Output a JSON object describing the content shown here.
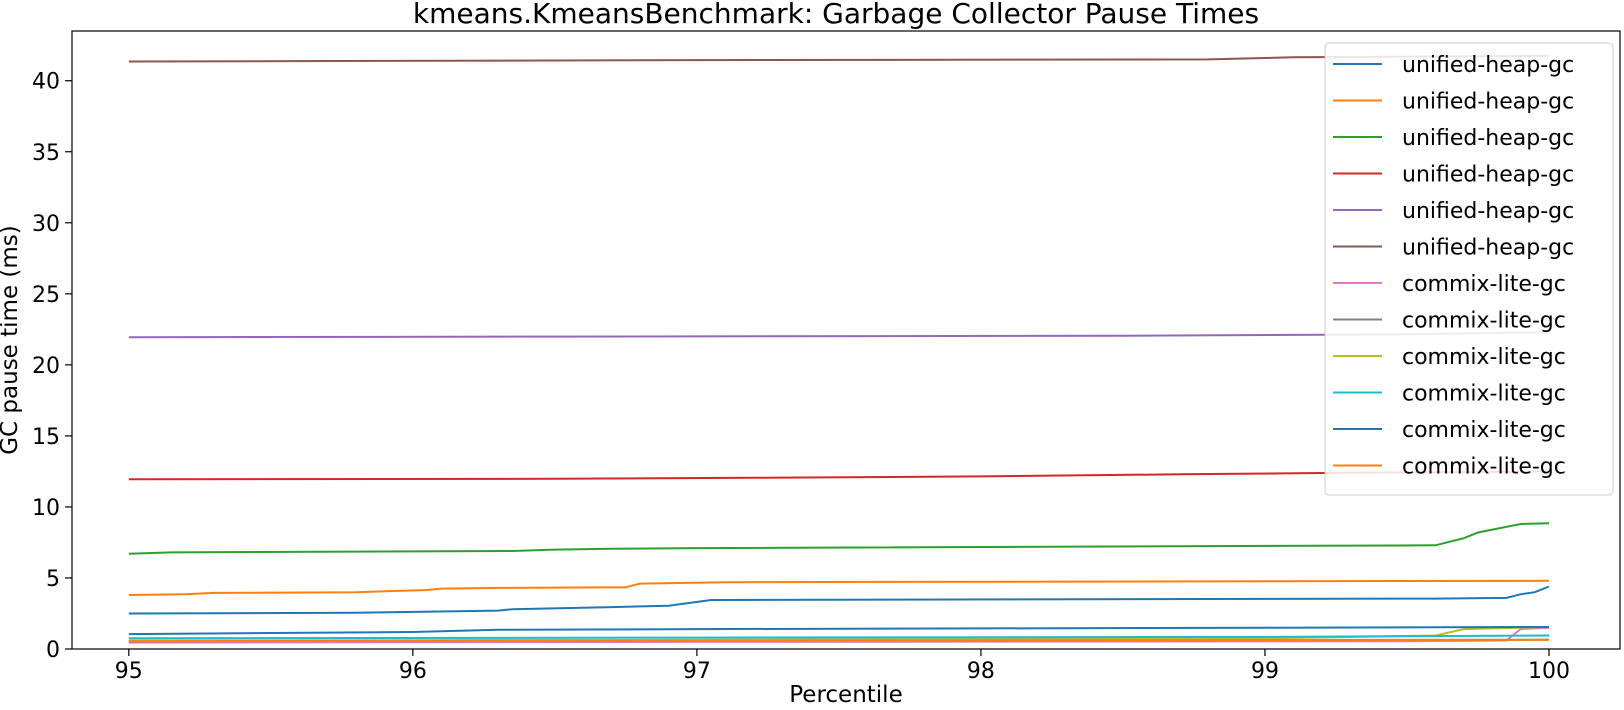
{
  "chart_data": {
    "type": "line",
    "title": "kmeans.KmeansBenchmark: Garbage Collector Pause Times",
    "xlabel": "Percentile",
    "ylabel": "GC pause time (ms)",
    "xlim": [
      94.8,
      100.25
    ],
    "ylim": [
      0,
      43.5
    ],
    "xticks": [
      95,
      96,
      97,
      98,
      99,
      100
    ],
    "yticks": [
      0,
      5,
      10,
      15,
      20,
      25,
      30,
      35,
      40
    ],
    "grid": false,
    "legend_position": "top-right",
    "series": [
      {
        "name": "unified-heap-gc",
        "color": "#1f77b4",
        "x": [
          95,
          95.8,
          96.3,
          96.35,
          96.7,
          96.9,
          97.05,
          99.6,
          99.85,
          99.9,
          99.95,
          100
        ],
        "y": [
          2.5,
          2.55,
          2.7,
          2.8,
          2.95,
          3.05,
          3.45,
          3.55,
          3.6,
          3.85,
          4.0,
          4.4
        ]
      },
      {
        "name": "unified-heap-gc",
        "color": "#ff7f0e",
        "x": [
          95,
          95.2,
          95.3,
          95.8,
          96.05,
          96.1,
          96.3,
          96.75,
          96.8,
          97.1,
          100
        ],
        "y": [
          3.8,
          3.85,
          3.95,
          4.0,
          4.15,
          4.25,
          4.3,
          4.35,
          4.6,
          4.7,
          4.8
        ]
      },
      {
        "name": "unified-heap-gc",
        "color": "#2ca02c",
        "x": [
          95,
          95.15,
          96.35,
          96.5,
          96.7,
          97.0,
          99.6,
          99.7,
          99.75,
          99.9,
          100
        ],
        "y": [
          6.7,
          6.8,
          6.9,
          7.0,
          7.05,
          7.1,
          7.3,
          7.8,
          8.2,
          8.8,
          8.85
        ]
      },
      {
        "name": "unified-heap-gc",
        "color": "#d62728",
        "x": [
          95,
          96.5,
          97.2,
          98.0,
          98.7,
          99.3,
          100
        ],
        "y": [
          11.95,
          11.98,
          12.05,
          12.15,
          12.3,
          12.4,
          12.5
        ]
      },
      {
        "name": "unified-heap-gc",
        "color": "#9467bd",
        "x": [
          95,
          97.0,
          98.5,
          99.5,
          100
        ],
        "y": [
          21.95,
          22.0,
          22.05,
          22.15,
          22.3
        ]
      },
      {
        "name": "unified-heap-gc",
        "color": "#8c564b",
        "x": [
          95,
          97.0,
          98.8,
          99.1,
          100
        ],
        "y": [
          41.35,
          41.45,
          41.5,
          41.65,
          41.75
        ]
      },
      {
        "name": "commix-lite-gc",
        "color": "#e377c2",
        "x": [
          95,
          97.0,
          99.5,
          99.85,
          99.9,
          100
        ],
        "y": [
          0.45,
          0.5,
          0.55,
          0.6,
          1.4,
          1.5
        ]
      },
      {
        "name": "commix-lite-gc",
        "color": "#7f7f7f",
        "x": [
          95,
          97.0,
          100
        ],
        "y": [
          0.55,
          0.6,
          0.65
        ]
      },
      {
        "name": "commix-lite-gc",
        "color": "#bcbd22",
        "x": [
          95,
          97.0,
          99.0,
          99.6,
          99.7,
          100
        ],
        "y": [
          0.6,
          0.65,
          0.75,
          0.95,
          1.4,
          1.55
        ]
      },
      {
        "name": "commix-lite-gc",
        "color": "#17becf",
        "x": [
          95,
          97.0,
          99.0,
          100
        ],
        "y": [
          0.75,
          0.8,
          0.85,
          0.95
        ]
      },
      {
        "name": "commix-lite-gc",
        "color": "#1f77b4",
        "x": [
          95,
          96.0,
          96.3,
          97.0,
          98.0,
          99.0,
          100
        ],
        "y": [
          1.05,
          1.2,
          1.35,
          1.4,
          1.45,
          1.5,
          1.55
        ]
      },
      {
        "name": "commix-lite-gc",
        "color": "#ff7f0e",
        "x": [
          95,
          97.0,
          100
        ],
        "y": [
          0.55,
          0.6,
          0.65
        ]
      }
    ]
  }
}
